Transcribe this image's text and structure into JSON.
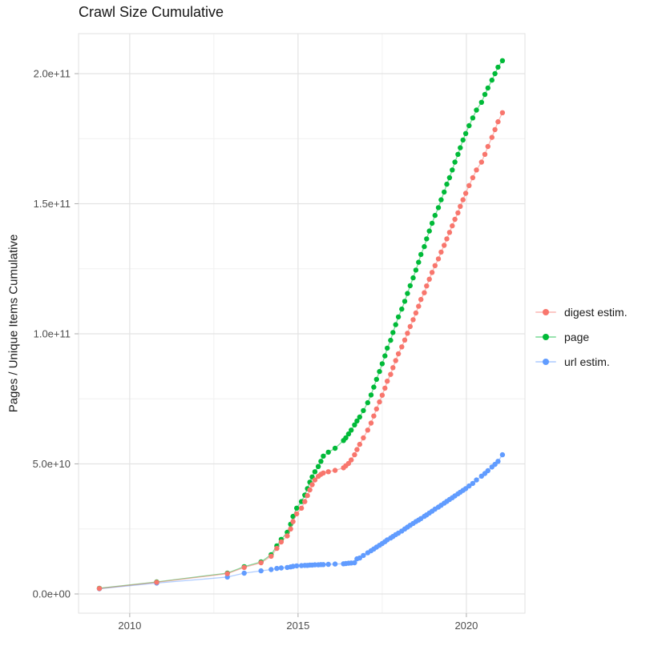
{
  "chart_data": {
    "type": "scatter-line",
    "title": "Crawl Size Cumulative",
    "xlabel": "",
    "ylabel": "Pages / Unique Items Cumulative",
    "legend_position": "right",
    "grid": true,
    "background_color": "#FFFFFF",
    "major_grid_color": "#E3E3E3",
    "minor_grid_color": "#F0F0F0",
    "tick_color": "#B3B3B3",
    "tick_label_color": "#4D4D4D",
    "x": [
      2009.1,
      2010.8,
      2012.9,
      2013.4,
      2013.9,
      2014.2,
      2014.37,
      2014.5,
      2014.68,
      2014.78,
      2014.85,
      2014.96,
      2015.1,
      2015.2,
      2015.28,
      2015.35,
      2015.42,
      2015.5,
      2015.6,
      2015.68,
      2015.75,
      2015.9,
      2016.1,
      2016.35,
      2016.42,
      2016.5,
      2016.58,
      2016.68,
      2016.75,
      2016.83,
      2016.94,
      2017.07,
      2017.17,
      2017.25,
      2017.33,
      2017.42,
      2017.5,
      2017.58,
      2017.65,
      2017.75,
      2017.82,
      2017.9,
      2017.98,
      2018.08,
      2018.17,
      2018.25,
      2018.33,
      2018.42,
      2018.5,
      2018.58,
      2018.65,
      2018.75,
      2018.82,
      2018.9,
      2018.98,
      2019.07,
      2019.17,
      2019.25,
      2019.34,
      2019.42,
      2019.5,
      2019.58,
      2019.66,
      2019.75,
      2019.82,
      2019.9,
      2019.98,
      2020.08,
      2020.19,
      2020.3,
      2020.45,
      2020.55,
      2020.64,
      2020.76,
      2020.85,
      2020.94,
      2021.07
    ],
    "series": [
      {
        "name": "digest estim.",
        "color": "#F8766D",
        "values_e9": [
          2.1,
          4.5,
          7.8,
          10.2,
          12.0,
          14.5,
          17.5,
          20.0,
          22.3,
          25.0,
          27.8,
          30.8,
          33.0,
          35.5,
          37.8,
          40.0,
          42.0,
          43.8,
          45.2,
          46.0,
          46.5,
          47.0,
          47.5,
          48.5,
          49.3,
          50.2,
          51.5,
          53.5,
          55.5,
          57.5,
          60.0,
          63.0,
          65.7,
          68.4,
          71.1,
          73.8,
          76.4,
          79.1,
          81.8,
          84.4,
          87.0,
          89.7,
          92.3,
          95.0,
          97.6,
          100.2,
          102.8,
          105.4,
          108.0,
          110.6,
          113.2,
          115.8,
          118.4,
          121.0,
          123.6,
          126.2,
          128.8,
          131.4,
          134.0,
          136.5,
          139.0,
          141.5,
          144.0,
          146.5,
          149.0,
          151.5,
          154.0,
          157.0,
          160.0,
          163.0,
          166.0,
          169.0,
          172.0,
          175.5,
          178.5,
          181.5,
          185.0
        ]
      },
      {
        "name": "page",
        "color": "#00BA38",
        "values_e9": [
          2.2,
          4.6,
          8.0,
          10.5,
          12.3,
          15.1,
          18.5,
          21.0,
          23.7,
          26.8,
          29.8,
          33.0,
          35.5,
          38.0,
          40.5,
          43.0,
          45.0,
          47.0,
          49.0,
          51.0,
          53.0,
          54.5,
          56.0,
          59.0,
          60.0,
          61.5,
          63.0,
          65.0,
          66.5,
          68.0,
          70.5,
          73.5,
          76.5,
          79.5,
          82.5,
          85.5,
          88.5,
          91.5,
          94.5,
          97.5,
          100.5,
          103.5,
          106.5,
          109.5,
          112.5,
          115.5,
          118.5,
          121.5,
          124.5,
          127.5,
          130.5,
          133.5,
          136.5,
          139.5,
          142.5,
          145.5,
          148.5,
          151.5,
          154.5,
          157.5,
          160.0,
          163.0,
          166.0,
          169.0,
          171.5,
          174.5,
          177.0,
          180.0,
          183.0,
          186.0,
          189.0,
          192.0,
          194.5,
          197.5,
          200.0,
          202.5,
          205.0
        ]
      },
      {
        "name": "url estim.",
        "color": "#619CFF",
        "values_e9": [
          2.0,
          4.2,
          6.5,
          8.0,
          8.9,
          9.4,
          9.8,
          10.0,
          10.2,
          10.4,
          10.6,
          10.8,
          10.9,
          11.0,
          11.0,
          11.1,
          11.1,
          11.2,
          11.2,
          11.3,
          11.3,
          11.4,
          11.5,
          11.6,
          11.7,
          11.8,
          11.9,
          12.0,
          13.5,
          13.8,
          14.8,
          15.8,
          16.6,
          17.3,
          18.0,
          18.7,
          19.4,
          20.1,
          20.8,
          21.5,
          22.1,
          22.8,
          23.4,
          24.2,
          25.0,
          25.7,
          26.4,
          27.1,
          27.8,
          28.4,
          29.0,
          29.8,
          30.4,
          31.1,
          31.8,
          32.6,
          33.4,
          34.1,
          34.9,
          35.6,
          36.3,
          37.0,
          37.7,
          38.5,
          39.1,
          39.8,
          40.5,
          41.5,
          42.5,
          43.8,
          45.3,
          46.3,
          47.4,
          48.8,
          49.8,
          51.0,
          53.5
        ]
      }
    ],
    "y_unit": "1e9",
    "xlim": [
      2008.48,
      2021.74
    ],
    "ylim_e9": [
      -7,
      215
    ],
    "xticks": {
      "major": [
        2010,
        2015,
        2020
      ],
      "minor": [
        2012.5,
        2017.5
      ],
      "labels": [
        "2010",
        "2015",
        "2020"
      ]
    },
    "yticks": {
      "major_e9": [
        0,
        50,
        100,
        150,
        200
      ],
      "minor_e9": [
        25,
        75,
        125,
        175
      ],
      "labels": [
        "0.0e+00",
        "5.0e+10",
        "1.0e+11",
        "1.5e+11",
        "2.0e+11"
      ]
    }
  }
}
